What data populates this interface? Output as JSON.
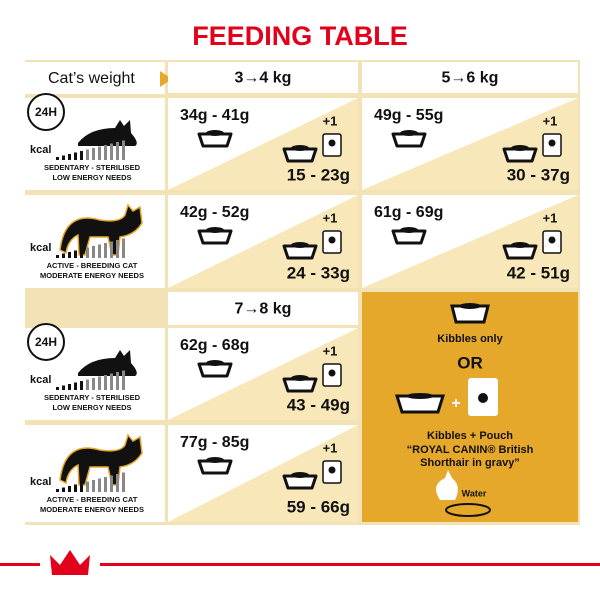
{
  "title": "FEEDING TABLE",
  "weight_label": "Cat’s weight",
  "profiles": [
    {
      "period": "24H",
      "kcal": "kcal",
      "line1": "SEDENTARY - STERILISED",
      "line2": "LOW ENERGY NEEDS"
    },
    {
      "kcal": "kcal",
      "line1": "ACTIVE - BREEDING CAT",
      "line2": "MODERATE ENERGY NEEDS"
    },
    {
      "period": "24H",
      "kcal": "kcal",
      "line1": "SEDENTARY - STERILISED",
      "line2": "LOW ENERGY NEEDS"
    },
    {
      "kcal": "kcal",
      "line1": "ACTIVE - BREEDING CAT",
      "line2": "MODERATE ENERGY NEEDS"
    }
  ],
  "groups": [
    {
      "weights": [
        "3→4 kg",
        "5→6 kg"
      ],
      "rows": [
        [
          {
            "dry": "34g - 41g",
            "plus": "+1",
            "mixed": "15 - 23g"
          },
          {
            "dry": "49g - 55g",
            "plus": "+1",
            "mixed": "30 - 37g"
          }
        ],
        [
          {
            "dry": "42g - 52g",
            "plus": "+1",
            "mixed": "24 - 33g"
          },
          {
            "dry": "61g - 69g",
            "plus": "+1",
            "mixed": "42 - 51g"
          }
        ]
      ]
    },
    {
      "weights": [
        "7→8 kg"
      ],
      "rows": [
        [
          {
            "dry": "62g - 68g",
            "plus": "+1",
            "mixed": "43 - 49g"
          }
        ],
        [
          {
            "dry": "77g - 85g",
            "plus": "+1",
            "mixed": "59 - 66g"
          }
        ]
      ]
    }
  ],
  "legend": {
    "kibbles_only": "Kibbles only",
    "or": "OR",
    "plus": "+",
    "kibbles_pouch": "Kibbles + Pouch",
    "product_lines": [
      "“ROYAL CANIN® British",
      "Shorthair in gravy”"
    ],
    "water": "Water"
  }
}
